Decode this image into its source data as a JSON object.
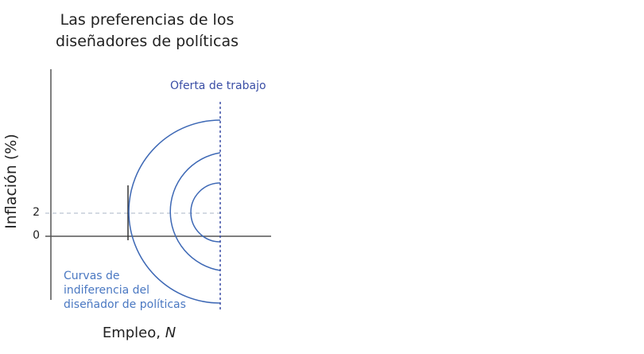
{
  "title_line1": "Las preferencias de los",
  "title_line2": "diseñadores de políticas",
  "y_axis_label": "Inflación (%)",
  "x_axis_label_text": "Empleo, ",
  "x_axis_label_var": "N",
  "y_ticks": [
    "2",
    "0"
  ],
  "labor_supply_label": "Oferta de trabajo",
  "indifference_label": [
    "Curvas de",
    "indiferencia del",
    "diseñador de políticas"
  ],
  "colors": {
    "curves": "#3d68b5",
    "supply": "#3b4fa6",
    "axes": "#555555",
    "target_line": "#aab4c4"
  },
  "target_inflation": 2,
  "indifference_curve_count": 3
}
